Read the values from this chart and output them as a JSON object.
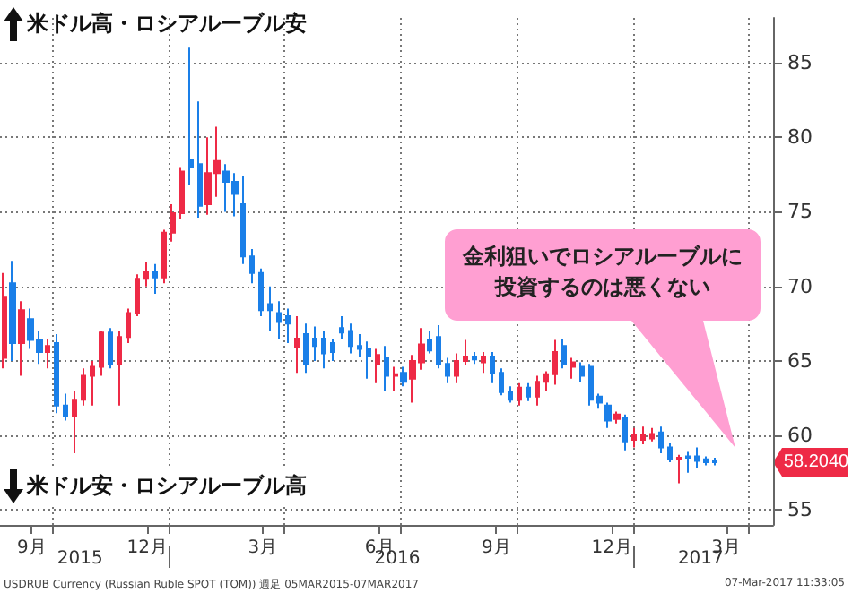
{
  "chart_data": {
    "type": "candlestick",
    "x": [
      "2015-08-24",
      "2015-08-31",
      "2015-09-07",
      "2015-09-14",
      "2015-09-21",
      "2015-09-28",
      "2015-10-05",
      "2015-10-12",
      "2015-10-19",
      "2015-10-26",
      "2015-11-02",
      "2015-11-09",
      "2015-11-16",
      "2015-11-23",
      "2015-11-30",
      "2015-12-07",
      "2015-12-14",
      "2015-12-21",
      "2015-12-28",
      "2016-01-04",
      "2016-01-11",
      "2016-01-18",
      "2016-01-25",
      "2016-02-01",
      "2016-02-08",
      "2016-02-15",
      "2016-02-22",
      "2016-02-29",
      "2016-03-07",
      "2016-03-14",
      "2016-03-21",
      "2016-03-28",
      "2016-04-04",
      "2016-04-11",
      "2016-04-18",
      "2016-04-25",
      "2016-05-02",
      "2016-05-09",
      "2016-05-16",
      "2016-05-23",
      "2016-05-30",
      "2016-06-06",
      "2016-06-13",
      "2016-06-20",
      "2016-06-27",
      "2016-07-04",
      "2016-07-11",
      "2016-07-18",
      "2016-07-25",
      "2016-08-01",
      "2016-08-08",
      "2016-08-15",
      "2016-08-22",
      "2016-08-29",
      "2016-09-05",
      "2016-09-12",
      "2016-09-19",
      "2016-09-26",
      "2016-10-03",
      "2016-10-10",
      "2016-10-17",
      "2016-10-24",
      "2016-10-31",
      "2016-11-07",
      "2016-11-14",
      "2016-11-21",
      "2016-11-28",
      "2016-12-05",
      "2016-12-12",
      "2016-12-19",
      "2016-12-26",
      "2017-01-02",
      "2017-01-09",
      "2017-01-16",
      "2017-01-23",
      "2017-01-30",
      "2017-02-06",
      "2017-02-13",
      "2017-02-20",
      "2017-02-27",
      "2017-03-06"
    ],
    "ohlc": [
      [
        65.2,
        70.9,
        64.5,
        69.3
      ],
      [
        70.2,
        71.7,
        65.0,
        66.2
      ],
      [
        66.2,
        69.0,
        64.0,
        68.4
      ],
      [
        67.8,
        68.5,
        65.8,
        66.4
      ],
      [
        66.4,
        67.0,
        64.8,
        65.6
      ],
      [
        65.6,
        66.5,
        64.5,
        66.0
      ],
      [
        66.2,
        66.8,
        61.5,
        62.0
      ],
      [
        62.0,
        62.8,
        61.0,
        61.3
      ],
      [
        61.3,
        63.0,
        58.8,
        62.4
      ],
      [
        62.4,
        64.5,
        62.0,
        64.0
      ],
      [
        64.0,
        65.0,
        62.0,
        64.6
      ],
      [
        64.6,
        67.0,
        64.0,
        66.9
      ],
      [
        66.9,
        67.2,
        64.5,
        64.8
      ],
      [
        64.8,
        67.0,
        62.0,
        66.6
      ],
      [
        66.6,
        68.5,
        66.2,
        68.2
      ],
      [
        68.2,
        70.8,
        68.0,
        70.5
      ],
      [
        70.5,
        71.6,
        70.0,
        71.0
      ],
      [
        71.0,
        71.5,
        69.5,
        70.6
      ],
      [
        70.6,
        73.8,
        70.2,
        73.6
      ],
      [
        73.6,
        75.5,
        73.0,
        74.9
      ],
      [
        74.9,
        78.0,
        74.5,
        77.7
      ],
      [
        78.5,
        86.0,
        76.8,
        78.0
      ],
      [
        78.2,
        82.4,
        74.6,
        75.4
      ],
      [
        75.5,
        80.0,
        74.8,
        77.6
      ],
      [
        77.6,
        80.7,
        76.0,
        78.4
      ],
      [
        77.7,
        78.2,
        75.0,
        77.0
      ],
      [
        77.0,
        77.6,
        74.7,
        76.2
      ],
      [
        75.5,
        77.4,
        71.5,
        72.0
      ],
      [
        72.0,
        72.5,
        70.2,
        70.9
      ],
      [
        70.9,
        71.2,
        68.0,
        68.4
      ],
      [
        68.8,
        70.0,
        67.0,
        68.4
      ],
      [
        68.2,
        69.0,
        66.5,
        67.6
      ],
      [
        68.0,
        68.5,
        66.2,
        67.5
      ],
      [
        65.9,
        68.0,
        64.2,
        66.5
      ],
      [
        66.8,
        67.5,
        64.2,
        64.8
      ],
      [
        66.5,
        67.3,
        65.0,
        66.0
      ],
      [
        66.5,
        67.0,
        64.5,
        65.5
      ],
      [
        66.2,
        66.5,
        65.0,
        65.6
      ],
      [
        67.2,
        68.0,
        66.5,
        66.9
      ],
      [
        67.0,
        67.5,
        65.5,
        66.0
      ],
      [
        66.0,
        66.8,
        65.3,
        65.8
      ],
      [
        65.8,
        66.3,
        63.8,
        65.3
      ],
      [
        64.8,
        65.8,
        63.5,
        65.4
      ],
      [
        65.2,
        66.0,
        63.0,
        64.0
      ],
      [
        64.0,
        64.6,
        63.0,
        64.1
      ],
      [
        64.2,
        64.6,
        63.3,
        63.6
      ],
      [
        63.8,
        65.4,
        62.2,
        65.0
      ],
      [
        64.9,
        67.2,
        64.4,
        66.1
      ],
      [
        66.4,
        67.0,
        65.5,
        65.7
      ],
      [
        66.6,
        67.4,
        64.5,
        64.8
      ],
      [
        64.8,
        65.2,
        63.5,
        64.0
      ],
      [
        64.0,
        65.5,
        63.5,
        65.0
      ],
      [
        65.0,
        66.4,
        64.7,
        65.3
      ],
      [
        65.3,
        65.6,
        64.8,
        65.1
      ],
      [
        64.9,
        65.6,
        64.2,
        65.3
      ],
      [
        65.3,
        65.6,
        63.5,
        64.2
      ],
      [
        64.2,
        64.5,
        62.7,
        62.9
      ],
      [
        62.9,
        63.3,
        62.2,
        62.4
      ],
      [
        62.4,
        63.5,
        62.0,
        63.2
      ],
      [
        63.2,
        63.5,
        62.3,
        62.6
      ],
      [
        62.6,
        64.0,
        62.0,
        63.6
      ],
      [
        63.6,
        64.3,
        63.0,
        64.1
      ],
      [
        64.1,
        66.4,
        63.4,
        65.6
      ],
      [
        66.0,
        66.5,
        64.5,
        64.8
      ],
      [
        64.6,
        65.2,
        63.8,
        64.9
      ],
      [
        64.6,
        64.9,
        63.6,
        64.0
      ],
      [
        64.6,
        64.8,
        62.0,
        62.4
      ],
      [
        62.6,
        62.8,
        61.8,
        62.2
      ],
      [
        62.0,
        62.2,
        60.5,
        61.0
      ],
      [
        61.1,
        61.6,
        60.8,
        61.4
      ],
      [
        61.2,
        61.4,
        59.0,
        59.6
      ],
      [
        59.7,
        60.5,
        59.2,
        60.0
      ],
      [
        59.7,
        60.6,
        59.4,
        60.0
      ],
      [
        59.8,
        60.5,
        59.6,
        60.1
      ],
      [
        60.2,
        60.6,
        58.8,
        59.2
      ],
      [
        59.2,
        59.5,
        58.2,
        58.4
      ],
      [
        58.4,
        58.7,
        56.8,
        58.5
      ],
      [
        58.6,
        58.9,
        57.5,
        58.5
      ],
      [
        58.6,
        59.2,
        57.8,
        58.3
      ],
      [
        58.4,
        58.6,
        58.0,
        58.2
      ],
      [
        58.3,
        58.5,
        58.0,
        58.2
      ]
    ],
    "colors": [
      "#ee2a46",
      "#1a7fe8",
      "#ee2a46",
      "#1a7fe8",
      "#1a7fe8",
      "#ee2a46",
      "#1a7fe8",
      "#1a7fe8",
      "#ee2a46",
      "#ee2a46",
      "#ee2a46",
      "#ee2a46",
      "#1a7fe8",
      "#ee2a46",
      "#ee2a46",
      "#ee2a46",
      "#ee2a46",
      "#1a7fe8",
      "#ee2a46",
      "#ee2a46",
      "#ee2a46",
      "#1a7fe8",
      "#1a7fe8",
      "#ee2a46",
      "#ee2a46",
      "#1a7fe8",
      "#1a7fe8",
      "#1a7fe8",
      "#1a7fe8",
      "#1a7fe8",
      "#1a7fe8",
      "#1a7fe8",
      "#1a7fe8",
      "#ee2a46",
      "#1a7fe8",
      "#1a7fe8",
      "#1a7fe8",
      "#1a7fe8",
      "#1a7fe8",
      "#1a7fe8",
      "#1a7fe8",
      "#1a7fe8",
      "#ee2a46",
      "#1a7fe8",
      "#ee2a46",
      "#1a7fe8",
      "#ee2a46",
      "#ee2a46",
      "#1a7fe8",
      "#1a7fe8",
      "#1a7fe8",
      "#ee2a46",
      "#ee2a46",
      "#1a7fe8",
      "#ee2a46",
      "#1a7fe8",
      "#1a7fe8",
      "#1a7fe8",
      "#ee2a46",
      "#1a7fe8",
      "#ee2a46",
      "#ee2a46",
      "#ee2a46",
      "#1a7fe8",
      "#ee2a46",
      "#1a7fe8",
      "#1a7fe8",
      "#1a7fe8",
      "#1a7fe8",
      "#ee2a46",
      "#1a7fe8",
      "#ee2a46",
      "#ee2a46",
      "#ee2a46",
      "#1a7fe8",
      "#1a7fe8",
      "#ee2a46",
      "#1a7fe8",
      "#1a7fe8",
      "#1a7fe8",
      "#1a7fe8"
    ],
    "xlim": [
      "2015-08-21",
      "2017-04-21"
    ],
    "xticks": [
      {
        "value": "2015-09-15",
        "label": "9月"
      },
      {
        "value": "2015-10-01",
        "label": null
      },
      {
        "value": "2015-12-15",
        "label": "12月"
      },
      {
        "value": "2016-01-01",
        "label": null
      },
      {
        "value": "2016-03-15",
        "label": "3月"
      },
      {
        "value": "2016-04-01",
        "label": null
      },
      {
        "value": "2016-06-15",
        "label": "6月"
      },
      {
        "value": "2016-07-01",
        "label": null
      },
      {
        "value": "2016-09-15",
        "label": "9月"
      },
      {
        "value": "2016-10-01",
        "label": null
      },
      {
        "value": "2016-12-15",
        "label": "12月"
      },
      {
        "value": "2017-01-01",
        "label": null
      },
      {
        "value": "2017-03-15",
        "label": "3月"
      },
      {
        "value": "2017-04-01",
        "label": null
      }
    ],
    "x2lim": [
      "2015-08-21",
      "2017-04-21"
    ],
    "x2ticks": [
      {
        "value": "2015-10-23",
        "label": "2015"
      },
      {
        "value": "2016-01-01",
        "label": null
      },
      {
        "value": "2016-06-29",
        "label": "2016"
      },
      {
        "value": "2017-01-01",
        "label": null
      },
      {
        "value": "2017-02-23",
        "label": "2017"
      }
    ],
    "ylim": [
      54,
      88
    ],
    "yticks": [
      55,
      60,
      65,
      70,
      75,
      80,
      85
    ],
    "grid": true,
    "annotations": [
      "米ドル高・ロシアルーブル安",
      "米ドル安・ロシアルーブル高",
      "金利狙いでロシアルーブルに投資するのは悪くない",
      "58.2040",
      "USDRUB Currency (Russian Ruble SPOT (TOM)) 週足 05MAR2015-07MAR2017",
      "07-Mar-2017 11:33:05"
    ]
  }
}
